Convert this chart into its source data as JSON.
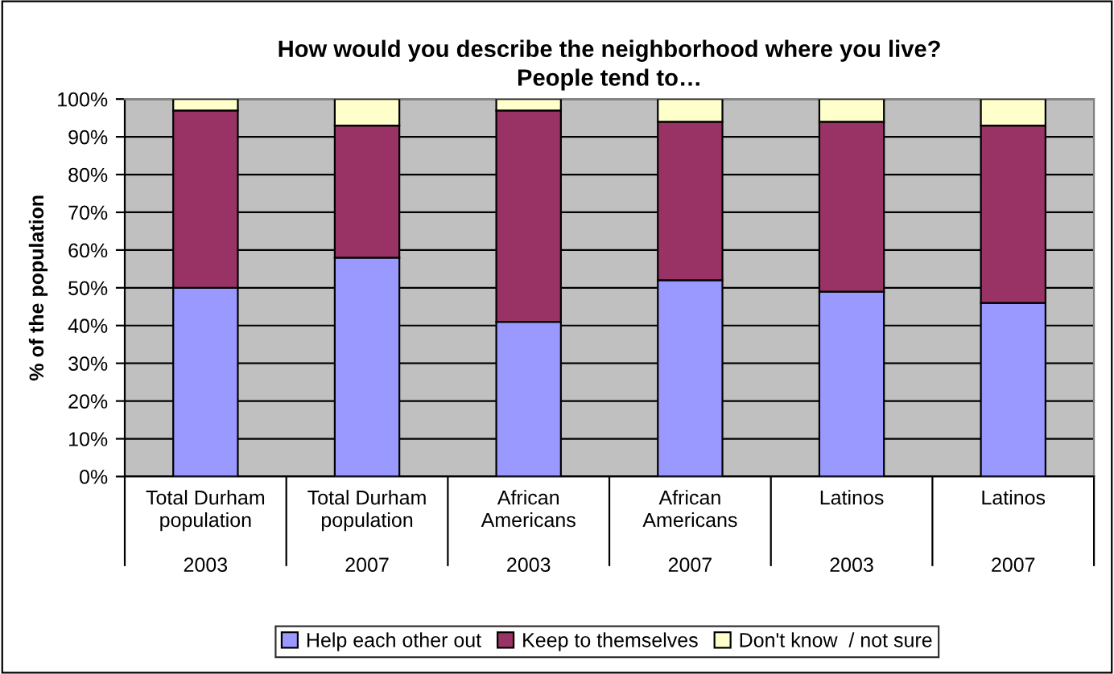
{
  "chart_data": {
    "type": "bar",
    "stacked": true,
    "title": "How would you describe the neighborhood where you live?\nPeople tend to…",
    "ylabel": "% of the population",
    "categories": [
      "Total Durham\npopulation\n\n2003",
      "Total Durham\npopulation\n\n2007",
      "African\nAmericans\n\n2003",
      "African\nAmericans\n\n2007",
      "Latinos\n\n\n2003",
      "Latinos\n\n\n2007"
    ],
    "series": [
      {
        "name": "Help each other out",
        "color": "#9999ff",
        "values": [
          50,
          58,
          41,
          52,
          49,
          46
        ]
      },
      {
        "name": "Keep to themselves",
        "color": "#993366",
        "values": [
          47,
          35,
          56,
          42,
          45,
          47
        ]
      },
      {
        "name": "Don't know  / not sure",
        "color": "#ffffcc",
        "values": [
          3,
          7,
          3,
          6,
          6,
          7
        ]
      }
    ],
    "ylim": [
      0,
      100
    ],
    "yticks": [
      {
        "value": 0,
        "label": "0%"
      },
      {
        "value": 10,
        "label": "10%"
      },
      {
        "value": 20,
        "label": "20%"
      },
      {
        "value": 30,
        "label": "30%"
      },
      {
        "value": 40,
        "label": "40%"
      },
      {
        "value": 50,
        "label": "50%"
      },
      {
        "value": 60,
        "label": "60%"
      },
      {
        "value": 70,
        "label": "70%"
      },
      {
        "value": 80,
        "label": "80%"
      },
      {
        "value": 90,
        "label": "90%"
      },
      {
        "value": 100,
        "label": "100%"
      }
    ],
    "grid": "y",
    "legend": "bottom"
  }
}
